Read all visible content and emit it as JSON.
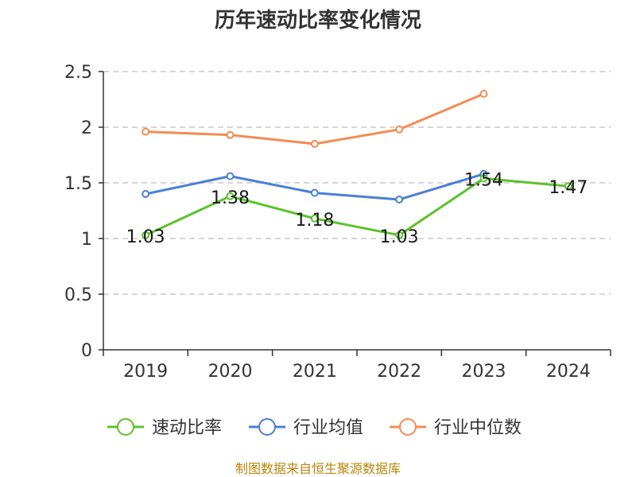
{
  "chart_data": {
    "type": "line",
    "title": "历年速动比率变化情况",
    "categories": [
      "2019",
      "2020",
      "2021",
      "2022",
      "2023",
      "2024"
    ],
    "ylim": [
      0,
      2.5
    ],
    "yticks": [
      0,
      0.5,
      1,
      1.5,
      2,
      2.5
    ],
    "ytick_labels": [
      "0",
      "0.5",
      "1",
      "1.5",
      "2",
      "2.5"
    ],
    "grid": true,
    "legend_position": "bottom",
    "series": [
      {
        "name": "速动比率",
        "color": "#5cc22b",
        "values": [
          1.03,
          1.38,
          1.18,
          1.03,
          1.54,
          1.47
        ],
        "labels": [
          "1.03",
          "1.38",
          "1.18",
          "1.03",
          "1.54",
          "1.47"
        ]
      },
      {
        "name": "行业均值",
        "color": "#4a7fd6",
        "values": [
          1.4,
          1.56,
          1.41,
          1.35,
          1.58,
          null
        ]
      },
      {
        "name": "行业中位数",
        "color": "#f48c54",
        "values": [
          1.96,
          1.93,
          1.85,
          1.98,
          2.3,
          null
        ]
      }
    ],
    "source": "制图数据来自恒生聚源数据库"
  }
}
